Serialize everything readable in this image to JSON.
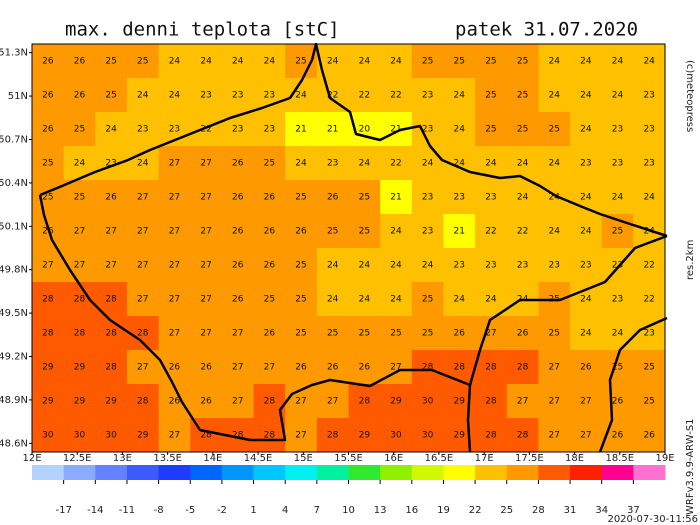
{
  "header": {
    "title": "max. denni teplota [stC]",
    "date": "patek 31.07.2020"
  },
  "side_texts": {
    "copyright": "(c)meteopress",
    "resolution": "res.2km",
    "model": "WRFv3.9.9-ARW-S1"
  },
  "timestamp": "2020-07-30-11:56",
  "map": {
    "xlim": [
      12,
      19
    ],
    "ylim": [
      48.54,
      51.36
    ],
    "lat_ticks": [
      {
        "value": 51.3,
        "label": "51.3N"
      },
      {
        "value": 51,
        "label": "51N"
      },
      {
        "value": 50.7,
        "label": "50.7N"
      },
      {
        "value": 50.4,
        "label": "50.4N"
      },
      {
        "value": 50.1,
        "label": "50.1N"
      },
      {
        "value": 49.8,
        "label": "49.8N"
      },
      {
        "value": 49.5,
        "label": "49.5N"
      },
      {
        "value": 49.2,
        "label": "49.2N"
      },
      {
        "value": 48.9,
        "label": "48.9N"
      },
      {
        "value": 48.6,
        "label": "48.6N"
      }
    ],
    "lon_ticks": [
      {
        "value": 12,
        "label": "12E"
      },
      {
        "value": 12.5,
        "label": "12.5E"
      },
      {
        "value": 13,
        "label": "13E"
      },
      {
        "value": 13.5,
        "label": "13.5E"
      },
      {
        "value": 14,
        "label": "14E"
      },
      {
        "value": 14.5,
        "label": "14.5E"
      },
      {
        "value": 15,
        "label": "15E"
      },
      {
        "value": 15.5,
        "label": "15.5E"
      },
      {
        "value": 16,
        "label": "16E"
      },
      {
        "value": 16.5,
        "label": "16.5E"
      },
      {
        "value": 17,
        "label": "17E"
      },
      {
        "value": 17.5,
        "label": "17.5E"
      },
      {
        "value": 18,
        "label": "18E"
      },
      {
        "value": 18.5,
        "label": "18.5E"
      },
      {
        "value": 19,
        "label": "19E"
      }
    ],
    "temperature_grid": [
      [
        26,
        26,
        25,
        25,
        24,
        24,
        24,
        24,
        25,
        24,
        24,
        24,
        25,
        25,
        25,
        25,
        24,
        24,
        24,
        24
      ],
      [
        26,
        26,
        25,
        24,
        24,
        23,
        23,
        23,
        24,
        22,
        22,
        22,
        23,
        24,
        25,
        25,
        24,
        24,
        24,
        23
      ],
      [
        26,
        25,
        24,
        23,
        23,
        22,
        23,
        23,
        21,
        21,
        20,
        21,
        23,
        24,
        25,
        25,
        25,
        24,
        23,
        23
      ],
      [
        25,
        24,
        23,
        24,
        27,
        27,
        26,
        25,
        24,
        23,
        24,
        22,
        24,
        24,
        24,
        24,
        24,
        23,
        23,
        23
      ],
      [
        25,
        25,
        26,
        27,
        27,
        27,
        26,
        26,
        25,
        26,
        25,
        21,
        23,
        23,
        23,
        24,
        24,
        24,
        24,
        24
      ],
      [
        26,
        27,
        27,
        27,
        27,
        27,
        26,
        26,
        26,
        25,
        25,
        24,
        23,
        21,
        22,
        22,
        24,
        24,
        25,
        24
      ],
      [
        27,
        27,
        27,
        27,
        27,
        27,
        26,
        26,
        25,
        24,
        24,
        24,
        24,
        23,
        23,
        23,
        23,
        23,
        23,
        22
      ],
      [
        28,
        28,
        28,
        27,
        27,
        27,
        26,
        25,
        25,
        24,
        24,
        24,
        25,
        24,
        24,
        24,
        25,
        24,
        23,
        22
      ],
      [
        28,
        28,
        28,
        28,
        27,
        27,
        27,
        26,
        25,
        25,
        25,
        25,
        25,
        26,
        27,
        26,
        25,
        24,
        24,
        23
      ],
      [
        29,
        29,
        28,
        27,
        26,
        26,
        27,
        27,
        26,
        26,
        26,
        27,
        28,
        28,
        28,
        28,
        27,
        26,
        25,
        25
      ],
      [
        29,
        29,
        29,
        28,
        26,
        26,
        27,
        28,
        27,
        27,
        28,
        29,
        30,
        29,
        28,
        27,
        27,
        27,
        26,
        25
      ],
      [
        30,
        30,
        30,
        29,
        27,
        28,
        28,
        28,
        27,
        28,
        29,
        30,
        30,
        29,
        28,
        28,
        27,
        27,
        26,
        26
      ]
    ]
  },
  "colorbar": {
    "lim": [
      -20,
      40
    ],
    "ticks": [
      -17,
      -14,
      -11,
      -8,
      -5,
      -2,
      1,
      4,
      7,
      10,
      13,
      16,
      19,
      22,
      25,
      28,
      31,
      34,
      37
    ],
    "colors": [
      "#b4d2ff",
      "#8caaff",
      "#6482ff",
      "#3c5aff",
      "#1e3cff",
      "#0064ff",
      "#0096ff",
      "#00c8ff",
      "#00f0f0",
      "#00f0a0",
      "#30e830",
      "#90f000",
      "#d0f800",
      "#ffff00",
      "#ffc000",
      "#ff9900",
      "#ff5a00",
      "#ff2000",
      "#ff0090",
      "#ff70d0"
    ]
  }
}
